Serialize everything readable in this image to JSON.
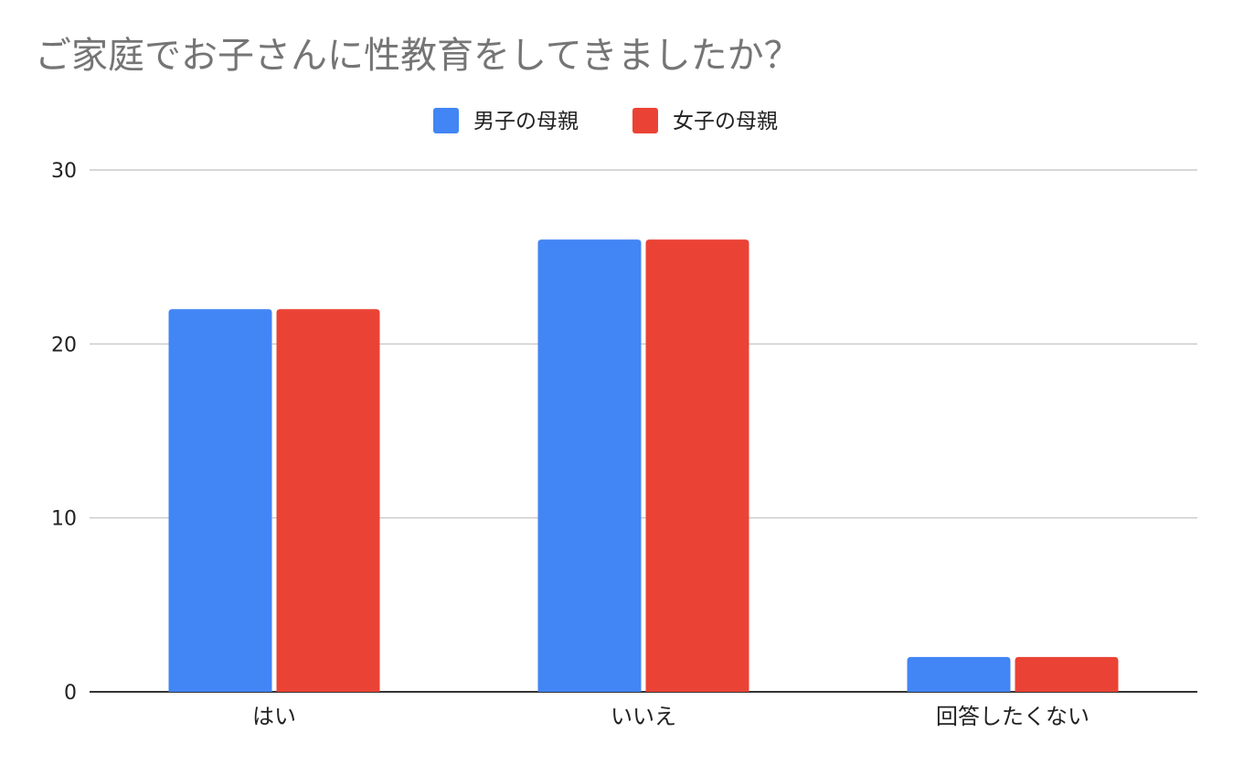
{
  "chart_data": {
    "type": "bar",
    "title": "ご家庭でお子さんに性教育をしてきましたか？",
    "xlabel": "",
    "ylabel": "",
    "categories": [
      "はい",
      "いいえ",
      "回答したくない"
    ],
    "series": [
      {
        "name": "男子の母親",
        "color": "#4285f4",
        "values": [
          22,
          26,
          2
        ]
      },
      {
        "name": "女子の母親",
        "color": "#ea4335",
        "values": [
          22,
          26,
          2
        ]
      }
    ],
    "ylim": [
      0,
      30
    ],
    "yticks": [
      0,
      10,
      20,
      30
    ],
    "grid": true,
    "legend_position": "top"
  }
}
